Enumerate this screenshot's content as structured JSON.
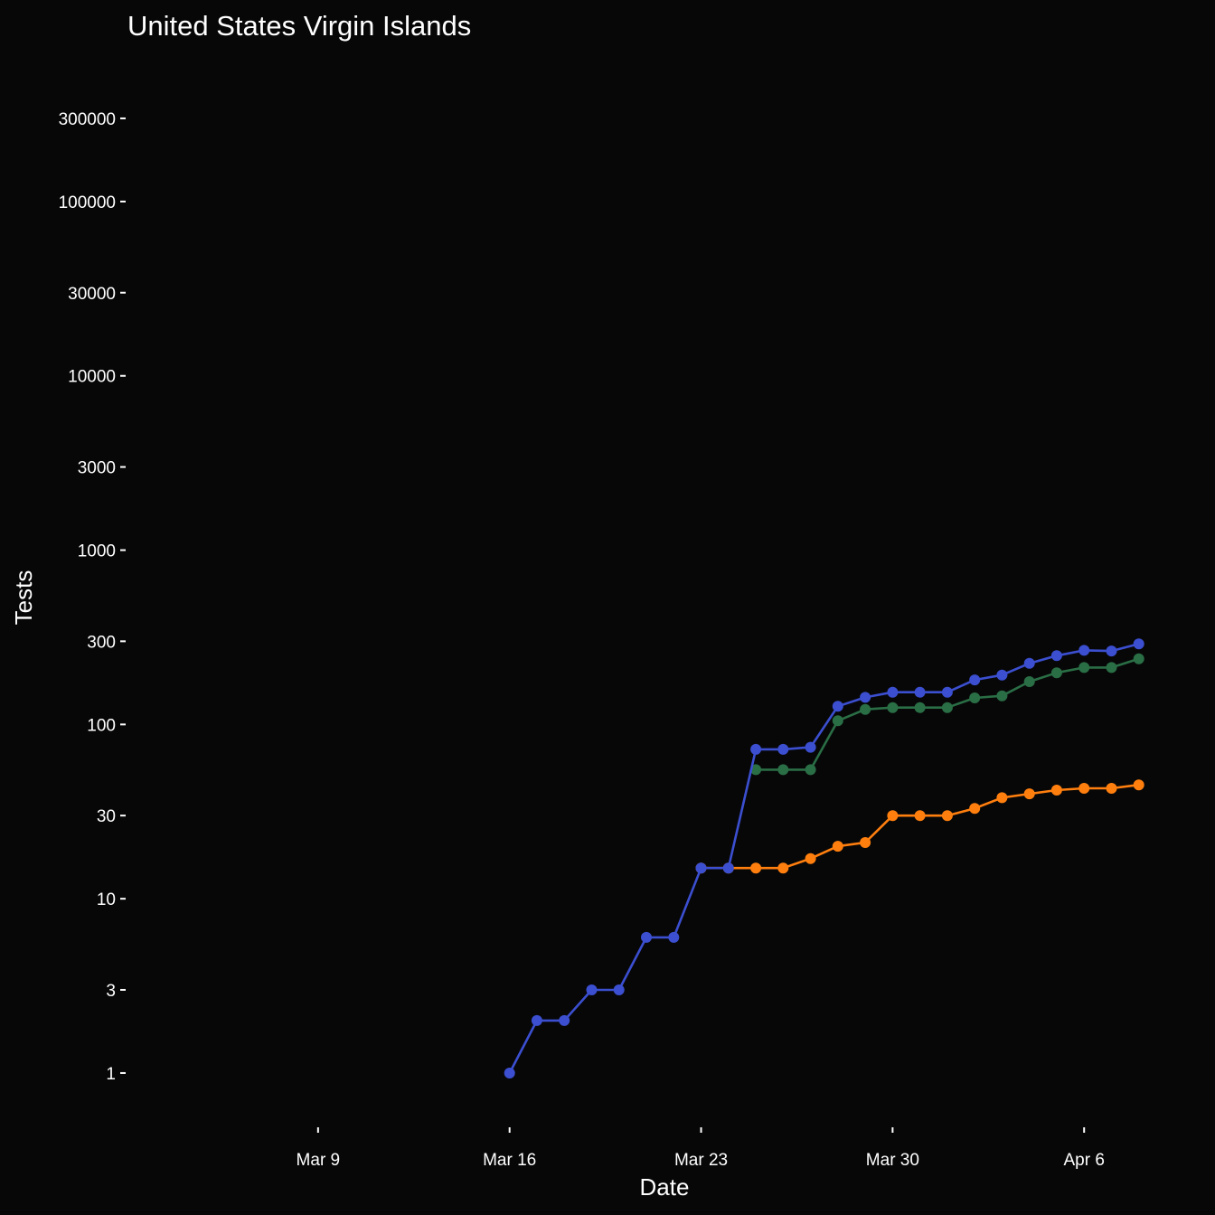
{
  "chart_data": {
    "type": "line",
    "title": "United States Virgin Islands",
    "xlabel": "Date",
    "ylabel": "Tests",
    "y_scale": "log",
    "ylim": [
      0.5,
      700000
    ],
    "xlim": [
      "2020-03-02",
      "2020-04-09"
    ],
    "grid": false,
    "background": "#070708",
    "x_ticks": [
      {
        "date": "2020-03-09",
        "label": "Mar  9"
      },
      {
        "date": "2020-03-16",
        "label": "Mar 16"
      },
      {
        "date": "2020-03-23",
        "label": "Mar 23"
      },
      {
        "date": "2020-03-30",
        "label": "Mar 30"
      },
      {
        "date": "2020-04-06",
        "label": "Apr  6"
      }
    ],
    "y_ticks": [
      {
        "value": 1,
        "label": "1"
      },
      {
        "value": 3,
        "label": "3"
      },
      {
        "value": 10,
        "label": "10"
      },
      {
        "value": 30,
        "label": "30"
      },
      {
        "value": 100,
        "label": "100"
      },
      {
        "value": 300,
        "label": "300"
      },
      {
        "value": 1000,
        "label": "1000"
      },
      {
        "value": 3000,
        "label": "3000"
      },
      {
        "value": 10000,
        "label": "10000"
      },
      {
        "value": 30000,
        "label": "30000"
      },
      {
        "value": 100000,
        "label": "100000"
      },
      {
        "value": 300000,
        "label": "300000"
      }
    ],
    "series": [
      {
        "color": "#ff7f0e",
        "points": [
          [
            "2020-03-23",
            15
          ],
          [
            "2020-03-24",
            15
          ],
          [
            "2020-03-25",
            15
          ],
          [
            "2020-03-26",
            15
          ],
          [
            "2020-03-27",
            17
          ],
          [
            "2020-03-28",
            20
          ],
          [
            "2020-03-29",
            21
          ],
          [
            "2020-03-30",
            30
          ],
          [
            "2020-03-31",
            30
          ],
          [
            "2020-04-01",
            30
          ],
          [
            "2020-04-02",
            33
          ],
          [
            "2020-04-03",
            38
          ],
          [
            "2020-04-04",
            40
          ],
          [
            "2020-04-05",
            42
          ],
          [
            "2020-04-06",
            43
          ],
          [
            "2020-04-07",
            43
          ],
          [
            "2020-04-08",
            45
          ]
        ]
      },
      {
        "color": "#2a6e45",
        "points": [
          [
            "2020-03-25",
            55
          ],
          [
            "2020-03-26",
            55
          ],
          [
            "2020-03-27",
            55
          ],
          [
            "2020-03-28",
            105
          ],
          [
            "2020-03-29",
            122
          ],
          [
            "2020-03-30",
            125
          ],
          [
            "2020-03-31",
            125
          ],
          [
            "2020-04-01",
            125
          ],
          [
            "2020-04-02",
            142
          ],
          [
            "2020-04-03",
            146
          ],
          [
            "2020-04-04",
            176
          ],
          [
            "2020-04-05",
            198
          ],
          [
            "2020-04-06",
            212
          ],
          [
            "2020-04-07",
            212
          ],
          [
            "2020-04-08",
            238
          ]
        ]
      },
      {
        "color": "#3b4fd0",
        "points": [
          [
            "2020-03-16",
            1
          ],
          [
            "2020-03-17",
            2
          ],
          [
            "2020-03-18",
            2
          ],
          [
            "2020-03-19",
            3
          ],
          [
            "2020-03-20",
            3
          ],
          [
            "2020-03-21",
            6
          ],
          [
            "2020-03-22",
            6
          ],
          [
            "2020-03-23",
            15
          ],
          [
            "2020-03-24",
            15
          ],
          [
            "2020-03-25",
            72
          ],
          [
            "2020-03-26",
            72
          ],
          [
            "2020-03-27",
            74
          ],
          [
            "2020-03-28",
            127
          ],
          [
            "2020-03-29",
            143
          ],
          [
            "2020-03-30",
            153
          ],
          [
            "2020-03-31",
            153
          ],
          [
            "2020-04-01",
            153
          ],
          [
            "2020-04-02",
            180
          ],
          [
            "2020-04-03",
            192
          ],
          [
            "2020-04-04",
            224
          ],
          [
            "2020-04-05",
            248
          ],
          [
            "2020-04-06",
            266
          ],
          [
            "2020-04-07",
            264
          ],
          [
            "2020-04-08",
            290
          ]
        ]
      }
    ]
  }
}
